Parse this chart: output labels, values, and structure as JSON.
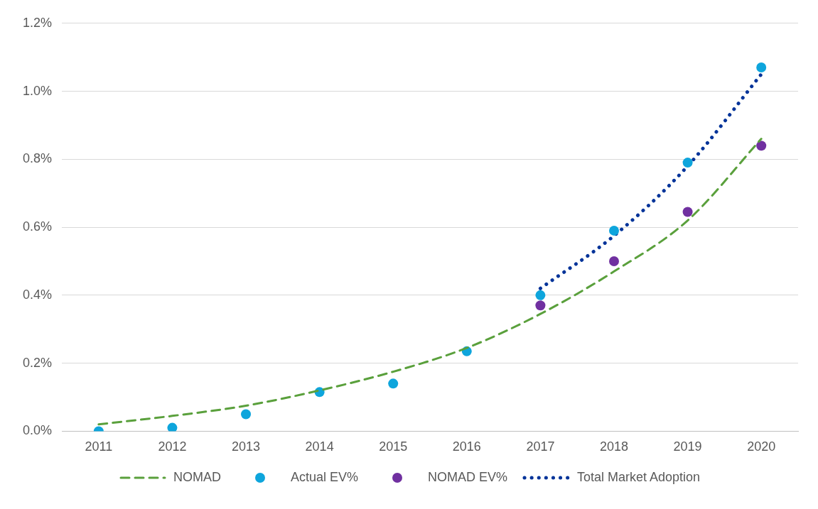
{
  "chart_data": {
    "type": "line",
    "categories": [
      "2011",
      "2012",
      "2013",
      "2014",
      "2015",
      "2016",
      "2017",
      "2018",
      "2019",
      "2020"
    ],
    "series": [
      {
        "name": "NOMAD",
        "color": "#5aa03c",
        "line_style": "dashed",
        "marker": "none",
        "values": [
          0.02,
          0.045,
          0.075,
          0.12,
          0.175,
          0.245,
          0.345,
          0.47,
          0.62,
          0.86
        ]
      },
      {
        "name": "Actual EV%",
        "type": "scatter",
        "color": "#0ea5dc",
        "marker": "circle",
        "values": [
          0.0,
          0.01,
          0.05,
          0.115,
          0.14,
          0.235,
          0.4,
          0.59,
          0.79,
          1.07
        ]
      },
      {
        "name": "NOMAD EV%",
        "type": "scatter",
        "color": "#7030a0",
        "marker": "circle",
        "values": [
          null,
          null,
          null,
          null,
          null,
          null,
          0.37,
          0.5,
          0.645,
          0.84
        ]
      },
      {
        "name": "Total Market Adoption",
        "color": "#003399",
        "line_style": "dotted",
        "marker": "none",
        "values": [
          null,
          null,
          null,
          null,
          null,
          null,
          0.42,
          0.575,
          0.78,
          1.05
        ]
      }
    ],
    "ylim": [
      0,
      1.2
    ],
    "yticks": [
      {
        "value": 0,
        "label": "0.0%"
      },
      {
        "value": 0.2,
        "label": "0.2%"
      },
      {
        "value": 0.4,
        "label": "0.4%"
      },
      {
        "value": 0.6,
        "label": "0.6%"
      },
      {
        "value": 0.8,
        "label": "0.8%"
      },
      {
        "value": 1.0,
        "label": "1.0%"
      },
      {
        "value": 1.2,
        "label": "1.2%"
      }
    ],
    "grid": "y",
    "legend": "bottom"
  }
}
